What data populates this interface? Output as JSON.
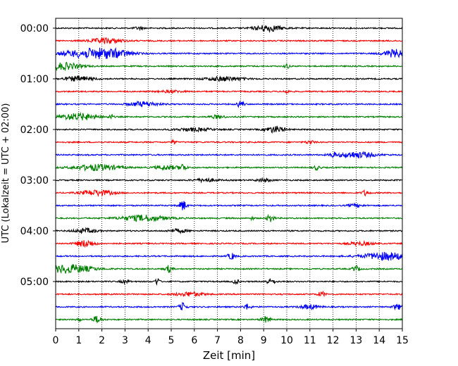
{
  "chart_data": {
    "type": "line",
    "title": "",
    "xlabel": "Zeit  [min]",
    "ylabel": "UTC (Lokalzeit = UTC + 02:00)",
    "xlim": [
      0,
      15
    ],
    "x_ticks": [
      "0",
      "1",
      "2",
      "3",
      "4",
      "5",
      "6",
      "7",
      "8",
      "9",
      "10",
      "11",
      "12",
      "13",
      "14",
      "15"
    ],
    "y_ticks": [
      "00:00",
      "01:00",
      "02:00",
      "03:00",
      "04:00",
      "05:00"
    ],
    "trace_interval_min": 15,
    "grid": "vertical dotted at each minute",
    "color_cycle": [
      "#000000",
      "#ff0000",
      "#0000ff",
      "#008000"
    ],
    "traces": [
      {
        "start": "00:00",
        "color": "#000000",
        "events": [
          [
            3.6,
            0.6,
            0.2
          ],
          [
            9.2,
            1.5,
            0.6
          ]
        ]
      },
      {
        "start": "00:15",
        "color": "#ff0000",
        "events": [
          [
            2.2,
            1.2,
            0.7
          ]
        ]
      },
      {
        "start": "00:30",
        "color": "#0000ff",
        "events": [
          [
            1.5,
            2.0,
            1.2
          ],
          [
            2.5,
            1.2,
            0.8
          ],
          [
            14.7,
            1.8,
            0.5
          ]
        ]
      },
      {
        "start": "00:45",
        "color": "#008000",
        "events": [
          [
            0.3,
            1.6,
            0.8
          ],
          [
            10.0,
            1.3,
            0.1
          ]
        ]
      },
      {
        "start": "01:00",
        "color": "#000000",
        "events": [
          [
            1.0,
            1.2,
            0.6
          ],
          [
            7.3,
            1.0,
            0.8
          ]
        ]
      },
      {
        "start": "01:15",
        "color": "#ff0000",
        "events": [
          [
            5.0,
            0.5,
            0.5
          ],
          [
            10.0,
            1.0,
            0.1
          ]
        ]
      },
      {
        "start": "01:30",
        "color": "#0000ff",
        "events": [
          [
            3.8,
            1.2,
            0.6
          ],
          [
            8.0,
            1.5,
            0.15
          ]
        ]
      },
      {
        "start": "01:45",
        "color": "#008000",
        "events": [
          [
            1.0,
            1.6,
            0.8
          ],
          [
            2.4,
            1.0,
            0.1
          ],
          [
            7.0,
            0.8,
            0.3
          ]
        ]
      },
      {
        "start": "02:00",
        "color": "#000000",
        "events": [
          [
            6.0,
            0.7,
            0.8
          ],
          [
            9.5,
            1.5,
            0.4
          ]
        ]
      },
      {
        "start": "02:15",
        "color": "#ff0000",
        "events": [
          [
            5.1,
            1.0,
            0.1
          ],
          [
            11.0,
            0.7,
            0.2
          ]
        ]
      },
      {
        "start": "02:30",
        "color": "#0000ff",
        "events": [
          [
            12.0,
            1.3,
            0.1
          ],
          [
            13.0,
            1.4,
            0.8
          ]
        ]
      },
      {
        "start": "02:45",
        "color": "#008000",
        "events": [
          [
            1.8,
            1.4,
            1.0
          ],
          [
            4.8,
            1.0,
            0.5
          ],
          [
            5.5,
            1.6,
            0.15
          ],
          [
            11.3,
            1.0,
            0.15
          ]
        ]
      },
      {
        "start": "03:00",
        "color": "#000000",
        "events": [
          [
            6.5,
            0.7,
            0.5
          ],
          [
            9.0,
            0.8,
            0.3
          ]
        ]
      },
      {
        "start": "03:15",
        "color": "#ff0000",
        "events": [
          [
            1.8,
            1.3,
            0.7
          ],
          [
            13.4,
            1.2,
            0.15
          ]
        ]
      },
      {
        "start": "03:30",
        "color": "#0000ff",
        "events": [
          [
            5.5,
            2.5,
            0.15
          ],
          [
            13.0,
            0.7,
            0.3
          ]
        ]
      },
      {
        "start": "03:45",
        "color": "#008000",
        "events": [
          [
            3.8,
            1.4,
            1.0
          ],
          [
            9.3,
            1.8,
            0.15
          ],
          [
            8.5,
            0.6,
            0.1
          ]
        ]
      },
      {
        "start": "04:00",
        "color": "#000000",
        "events": [
          [
            1.3,
            1.0,
            0.5
          ],
          [
            5.3,
            0.8,
            0.4
          ]
        ]
      },
      {
        "start": "04:15",
        "color": "#ff0000",
        "events": [
          [
            1.3,
            1.6,
            0.4
          ],
          [
            13.2,
            0.8,
            0.5
          ]
        ]
      },
      {
        "start": "04:30",
        "color": "#0000ff",
        "events": [
          [
            7.6,
            1.6,
            0.15
          ],
          [
            14.3,
            1.8,
            1.0
          ]
        ]
      },
      {
        "start": "04:45",
        "color": "#008000",
        "events": [
          [
            0.6,
            2.0,
            1.0
          ],
          [
            4.9,
            1.6,
            0.15
          ],
          [
            13.0,
            1.3,
            0.15
          ]
        ]
      },
      {
        "start": "05:00",
        "color": "#000000",
        "events": [
          [
            4.4,
            1.7,
            0.1
          ],
          [
            7.8,
            1.5,
            0.1
          ],
          [
            9.3,
            1.2,
            0.2
          ],
          [
            3.0,
            0.7,
            0.2
          ]
        ]
      },
      {
        "start": "05:15",
        "color": "#ff0000",
        "events": [
          [
            5.8,
            1.0,
            0.6
          ],
          [
            11.5,
            1.2,
            0.15
          ]
        ]
      },
      {
        "start": "05:30",
        "color": "#0000ff",
        "events": [
          [
            5.5,
            1.8,
            0.15
          ],
          [
            8.3,
            1.3,
            0.15
          ],
          [
            11.0,
            1.0,
            0.4
          ],
          [
            14.8,
            1.2,
            0.2
          ]
        ]
      },
      {
        "start": "05:45",
        "color": "#008000",
        "events": [
          [
            1.8,
            1.6,
            0.2
          ],
          [
            9.1,
            1.4,
            0.2
          ],
          [
            1.0,
            0.8,
            0.1
          ]
        ]
      }
    ]
  }
}
